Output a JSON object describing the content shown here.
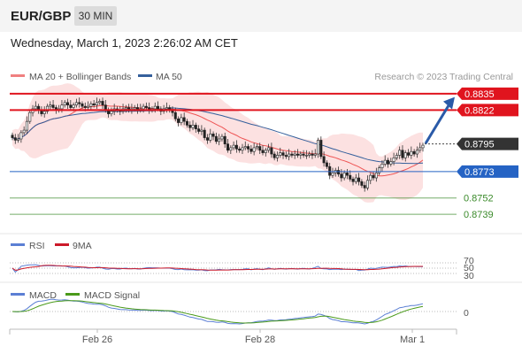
{
  "header": {
    "symbol": "EUR/GBP",
    "timeframe": "30 MIN"
  },
  "datetime": "Wednesday, March 1, 2023 2:26:02 AM CET",
  "colors": {
    "resistance": "#e0141e",
    "support": "#2563c4",
    "target": "#3a8a2a",
    "price": "#333333",
    "ma20": "#e55",
    "ma50": "#35609c",
    "bands": "#f9c9c9",
    "arrow": "#2a5aa8"
  },
  "chart_data": [
    {
      "type": "candlestick",
      "legend": [
        {
          "name": "MA 20 + Bollinger Bands",
          "color": "#f08080"
        },
        {
          "name": "MA 50",
          "color": "#35609c"
        }
      ],
      "credit": "Research © 2023 Trading Central",
      "ylim": [
        0.8725,
        0.8842
      ],
      "levels": [
        {
          "value": "0.8835",
          "kind": "resistance"
        },
        {
          "value": "0.8822",
          "kind": "resistance"
        },
        {
          "value": "0.8795",
          "kind": "price"
        },
        {
          "value": "0.8773",
          "kind": "support"
        },
        {
          "value": "0.8752",
          "kind": "target"
        },
        {
          "value": "0.8739",
          "kind": "target"
        }
      ],
      "closes": [
        0.88,
        0.8798,
        0.8799,
        0.8804,
        0.8806,
        0.8813,
        0.882,
        0.8823,
        0.8825,
        0.8822,
        0.8819,
        0.8821,
        0.8825,
        0.8826,
        0.8824,
        0.8822,
        0.8823,
        0.8826,
        0.8828,
        0.8826,
        0.8824,
        0.8826,
        0.8828,
        0.8827,
        0.8825,
        0.8824,
        0.8825,
        0.8827,
        0.8826,
        0.8828,
        0.8829,
        0.8826,
        0.8822,
        0.8819,
        0.8821,
        0.8823,
        0.8822,
        0.8821,
        0.8823,
        0.8824,
        0.8822,
        0.8823,
        0.8824,
        0.8822,
        0.8823,
        0.8825,
        0.8824,
        0.8822,
        0.8823,
        0.8825,
        0.8823,
        0.8821,
        0.8823,
        0.8824,
        0.8822,
        0.882,
        0.8815,
        0.8812,
        0.8816,
        0.8813,
        0.881,
        0.8808,
        0.881,
        0.8807,
        0.8805,
        0.8806,
        0.88,
        0.8798,
        0.8803,
        0.8801,
        0.8797,
        0.8799,
        0.8801,
        0.8795,
        0.879,
        0.8792,
        0.8794,
        0.8791,
        0.879,
        0.8792,
        0.8793,
        0.8791,
        0.8789,
        0.8792,
        0.8793,
        0.879,
        0.8788,
        0.879,
        0.8792,
        0.8787,
        0.8784,
        0.8786,
        0.8788,
        0.8786,
        0.8785,
        0.8787,
        0.8786,
        0.8787,
        0.8786,
        0.8787,
        0.8786,
        0.8786,
        0.8787,
        0.8786,
        0.8787,
        0.8798,
        0.8785,
        0.878,
        0.8777,
        0.877,
        0.8772,
        0.8774,
        0.8771,
        0.8768,
        0.8772,
        0.877,
        0.8767,
        0.8765,
        0.8768,
        0.8765,
        0.8762,
        0.876,
        0.8766,
        0.877,
        0.8768,
        0.8772,
        0.8776,
        0.8779,
        0.8782,
        0.8779,
        0.8781,
        0.8784,
        0.8786,
        0.879,
        0.8784,
        0.8788,
        0.8786,
        0.8789,
        0.8787,
        0.879,
        0.8792,
        0.8794
      ],
      "x_ticks": [
        {
          "label": "Feb 26"
        },
        {
          "label": "Feb 28"
        },
        {
          "label": "Mar 1"
        }
      ]
    },
    {
      "type": "line",
      "legend": [
        {
          "name": "RSI",
          "color": "#5b7fd4"
        },
        {
          "name": "9MA",
          "color": "#cc1a2a"
        }
      ],
      "y_ticks": [
        "70",
        "50",
        "30"
      ],
      "ylim": [
        0,
        100
      ]
    },
    {
      "type": "line",
      "legend": [
        {
          "name": "MACD",
          "color": "#5b7fd4"
        },
        {
          "name": "MACD Signal",
          "color": "#4a9a1a"
        }
      ],
      "y_ticks": [
        "0"
      ]
    }
  ]
}
